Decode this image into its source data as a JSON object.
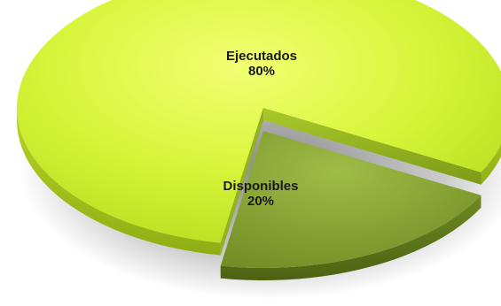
{
  "chart_data": {
    "type": "pie",
    "style": "3d-exploded",
    "title": "",
    "legend": "none",
    "slices": [
      {
        "label": "Ejecutados",
        "value": 80,
        "value_label": "80%",
        "color": "#d6f23a"
      },
      {
        "label": "Disponibles",
        "value": 20,
        "value_label": "20%",
        "color": "#7f9a2c"
      }
    ]
  }
}
